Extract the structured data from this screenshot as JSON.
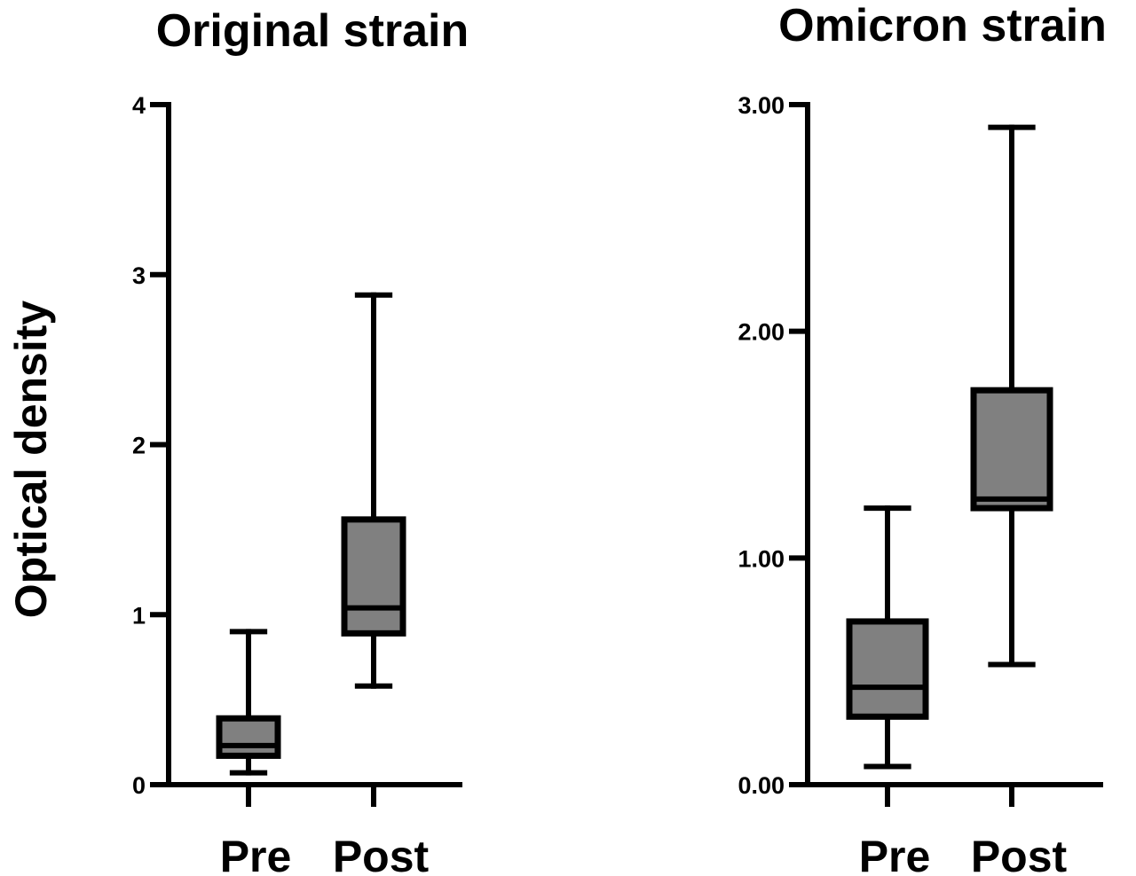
{
  "ylabel": "Optical density",
  "chart_data": [
    {
      "type": "box",
      "title": "Original strain",
      "ylabel": "Optical density",
      "ylim": [
        0,
        4
      ],
      "yticks": [
        "0",
        "1",
        "2",
        "3",
        "4"
      ],
      "categories": [
        "Pre",
        "Post"
      ],
      "boxes": [
        {
          "category": "Pre",
          "min": 0.07,
          "q1": 0.17,
          "median": 0.23,
          "q3": 0.39,
          "max": 0.9
        },
        {
          "category": "Post",
          "min": 0.58,
          "q1": 0.89,
          "median": 1.04,
          "q3": 1.56,
          "max": 2.88
        }
      ],
      "box_color": "#808080"
    },
    {
      "type": "box",
      "title": "Omicron strain",
      "ylim": [
        0,
        3
      ],
      "yticks": [
        "0.00",
        "1.00",
        "2.00",
        "3.00"
      ],
      "categories": [
        "Pre",
        "Post"
      ],
      "boxes": [
        {
          "category": "Pre",
          "min": 0.08,
          "q1": 0.3,
          "median": 0.43,
          "q3": 0.72,
          "max": 1.22
        },
        {
          "category": "Post",
          "min": 0.53,
          "q1": 1.22,
          "median": 1.26,
          "q3": 1.74,
          "max": 2.9
        }
      ],
      "box_color": "#808080"
    }
  ]
}
